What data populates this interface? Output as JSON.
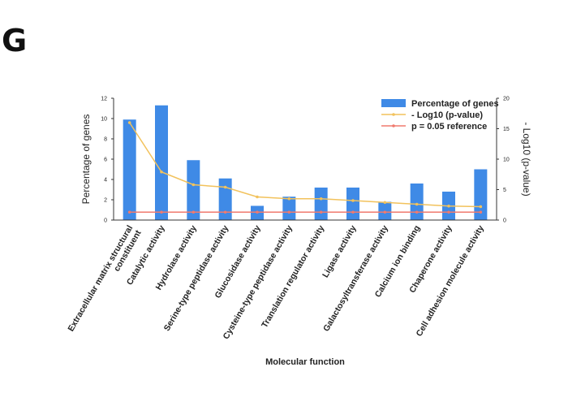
{
  "panel_label": "G",
  "chart_data": {
    "type": "bar",
    "title": "",
    "xlabel": "Molecular function",
    "ylabel": "Percentage of genes",
    "y2label": "- Log10 (p-value)",
    "ylim": [
      0,
      12
    ],
    "y2lim": [
      0,
      20
    ],
    "yticks": [
      "0",
      "2",
      "4",
      "6",
      "8",
      "10",
      "12"
    ],
    "y2ticks": [
      "0",
      "5",
      "10",
      "15",
      "20"
    ],
    "categories": [
      "Extracellular matrix structural constituent",
      "Catalytic activity",
      "Hydrolase activity",
      "Serine-type peptidase activity",
      "Glucosidase activity",
      "Cysteine-type peptidase activity",
      "Translation regulator activity",
      "Ligase activity",
      "Galactosyltransferase activity",
      "Calcium ion binding",
      "Chaperone activity",
      "Cell adhesion molecule activity"
    ],
    "series": [
      {
        "name": "Percentage of genes",
        "kind": "bar",
        "axis": "left",
        "color": "#3f8ae6",
        "values": [
          9.9,
          11.3,
          5.9,
          4.1,
          1.4,
          2.3,
          3.2,
          3.2,
          1.8,
          3.6,
          2.8,
          5.0
        ]
      },
      {
        "name": "- Log10 (p-value)",
        "kind": "line",
        "axis": "right",
        "color": "#f2c25c",
        "values": [
          16.0,
          7.9,
          5.8,
          5.4,
          3.8,
          3.5,
          3.5,
          3.2,
          2.9,
          2.6,
          2.3,
          2.2
        ]
      },
      {
        "name": "p = 0.05 reference",
        "kind": "line",
        "axis": "right",
        "color": "#f07a6e",
        "values": [
          1.3,
          1.3,
          1.3,
          1.3,
          1.3,
          1.3,
          1.3,
          1.3,
          1.3,
          1.3,
          1.3,
          1.3
        ]
      }
    ],
    "legend_position": "top-right",
    "grid": false
  }
}
